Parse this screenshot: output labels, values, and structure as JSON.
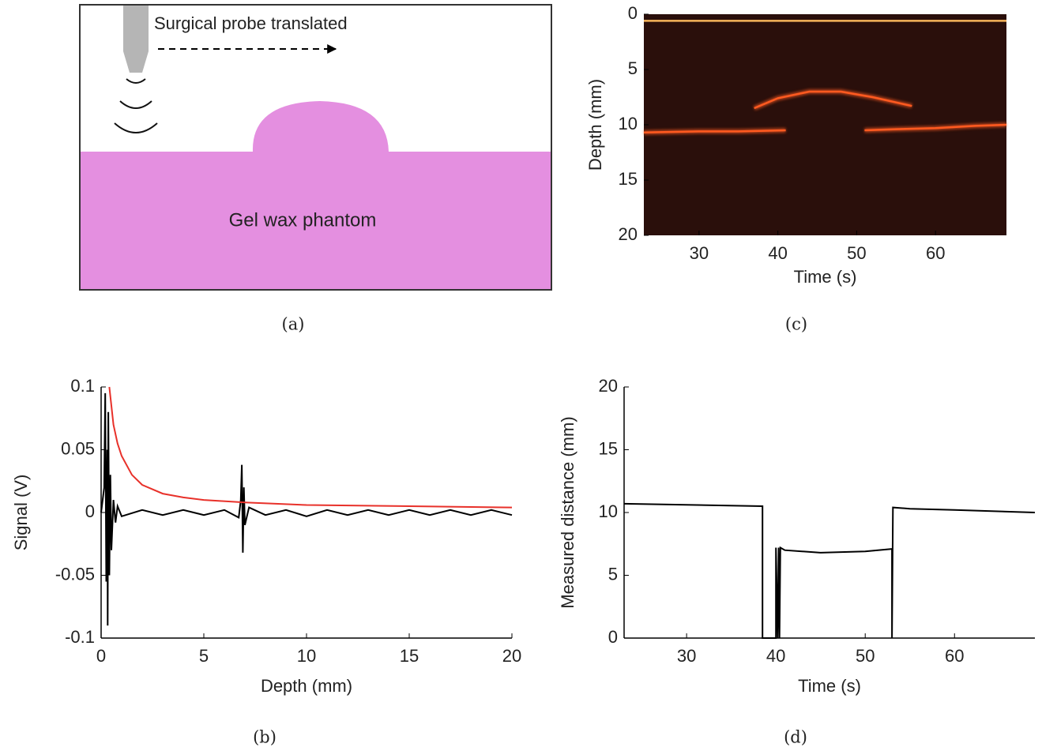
{
  "diagram": {
    "probe_label": "Surgical probe translated",
    "phantom_label": "Gel wax phantom",
    "caption": "(a)"
  },
  "chart_data": [
    {
      "type": "line",
      "caption": "(b)",
      "x_label": "Depth (mm)",
      "y_label": "Signal (V)",
      "xlim": [
        0,
        20
      ],
      "ylim": [
        -0.1,
        0.1
      ],
      "xticks": [
        0,
        5,
        10,
        15,
        20
      ],
      "yticks": [
        -0.1,
        -0.05,
        0,
        0.05,
        0.1
      ],
      "series": [
        {
          "color": "#000000",
          "x": [
            0,
            0.15,
            0.2,
            0.25,
            0.3,
            0.32,
            0.35,
            0.4,
            0.45,
            0.5,
            0.6,
            0.7,
            0.8,
            1,
            2,
            3,
            4,
            5,
            6,
            6.7,
            6.8,
            6.85,
            6.9,
            6.95,
            7,
            7.2,
            8,
            9,
            10,
            11,
            12,
            13,
            14,
            15,
            16,
            17,
            18,
            19,
            20
          ],
          "values": [
            0,
            0.02,
            0.095,
            -0.055,
            0.05,
            -0.09,
            0.08,
            -0.05,
            0.03,
            -0.03,
            0.01,
            -0.008,
            0.005,
            -0.003,
            0.002,
            -0.002,
            0.002,
            -0.002,
            0.002,
            -0.004,
            0.01,
            0.038,
            -0.032,
            0.02,
            -0.01,
            0.004,
            -0.002,
            0.002,
            -0.003,
            0.002,
            -0.002,
            0.002,
            -0.002,
            0.002,
            -0.002,
            0.002,
            -0.002,
            0.002,
            -0.002
          ]
        },
        {
          "color": "#e8312a",
          "x": [
            0.4,
            0.6,
            0.8,
            1,
            1.5,
            2,
            3,
            4,
            5,
            7,
            10,
            15,
            20
          ],
          "values": [
            0.1,
            0.07,
            0.055,
            0.045,
            0.03,
            0.022,
            0.015,
            0.012,
            0.01,
            0.008,
            0.006,
            0.005,
            0.004
          ]
        }
      ]
    },
    {
      "type": "image",
      "caption": "(c)",
      "x_label": "Time (s)",
      "y_label": "Depth (mm)",
      "xlim": [
        23,
        69
      ],
      "ylim": [
        0,
        20
      ],
      "yreverse": true,
      "xticks": [
        30,
        40,
        50,
        60
      ],
      "yticks": [
        0,
        5,
        10,
        15,
        20
      ],
      "series": [
        {
          "color": "#f7b55a",
          "x": [
            23,
            69
          ],
          "values": [
            0.6,
            0.6
          ]
        },
        {
          "color": "#ff5a20",
          "x": [
            23,
            30,
            35,
            41
          ],
          "values": [
            10.7,
            10.6,
            10.6,
            10.5
          ]
        },
        {
          "color": "#ff5a20",
          "x": [
            37,
            40,
            44,
            48,
            52,
            57
          ],
          "values": [
            8.5,
            7.6,
            7.0,
            7.0,
            7.5,
            8.3
          ]
        },
        {
          "color": "#ff5a20",
          "x": [
            51,
            55,
            60,
            65,
            69
          ],
          "values": [
            10.5,
            10.4,
            10.3,
            10.1,
            10.0
          ]
        }
      ]
    },
    {
      "type": "line",
      "caption": "(d)",
      "x_label": "Time (s)",
      "y_label": "Measured distance (mm)",
      "xlim": [
        23,
        69
      ],
      "ylim": [
        0,
        20
      ],
      "xticks": [
        30,
        40,
        50,
        60
      ],
      "yticks": [
        0,
        5,
        10,
        15,
        20
      ],
      "series": [
        {
          "color": "#000000",
          "x": [
            23,
            38.5,
            38.5,
            40,
            40,
            40.2,
            40.3,
            40.4,
            40.5,
            41,
            45,
            50,
            53,
            53,
            53.1,
            55,
            60,
            69
          ],
          "values": [
            10.7,
            10.5,
            0,
            0,
            7.2,
            0,
            7.2,
            0,
            7.2,
            7.0,
            6.8,
            6.9,
            7.1,
            0,
            10.4,
            10.3,
            10.2,
            10.0
          ]
        }
      ]
    }
  ]
}
